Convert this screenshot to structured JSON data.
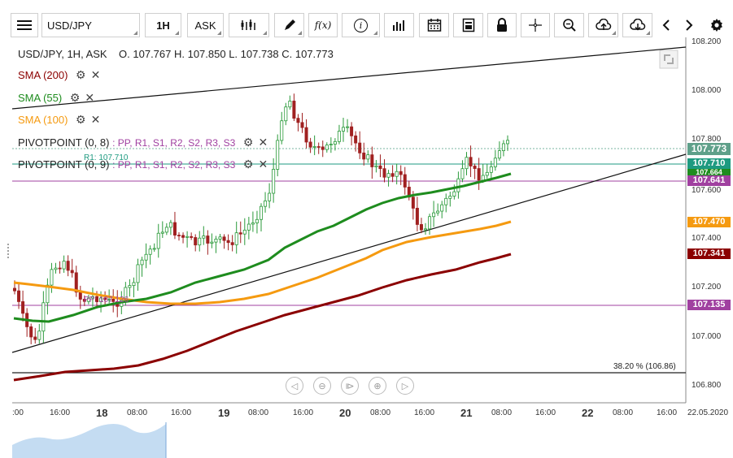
{
  "toolbar": {
    "symbol": "USD/JPY",
    "interval": "1H",
    "price_type": "ASK",
    "icons": [
      "menu-icon",
      "candles-icon",
      "pen-icon",
      "function-icon",
      "info-icon",
      "bars-icon",
      "calendar-icon",
      "report-icon",
      "lock-icon",
      "crosshair-icon",
      "zoom-icon",
      "upload-icon",
      "download-icon",
      "prev-icon",
      "next-icon",
      "settings-icon"
    ],
    "function_glyph": "f(x)",
    "info_glyph": "i"
  },
  "header": {
    "title": "USD/JPY, 1H, ASK",
    "ohlc": "O. 107.767 H. 107.850 L. 107.738 C. 107.773"
  },
  "indicators": [
    {
      "label": "SMA (200)",
      "color": "#8b0000"
    },
    {
      "label": "SMA (55)",
      "color": "#1e8c1e"
    },
    {
      "label": "SMA (100)",
      "color": "#f59a10"
    }
  ],
  "pivots": [
    {
      "label": "PIVOTPOINT (0, 8)",
      "levels": ": PP, R1, S1, R2, S2, R3, S3"
    },
    {
      "label": "PIVOTPOINT (0, 9)",
      "levels": ": PP, R1, S1, R2, S2, R3, S3"
    }
  ],
  "pivot_colors": [
    "#a040a0",
    "#1e8c1e",
    "#8b5a00",
    "#2040c0",
    "#8b3030",
    "#c02080",
    "#109090"
  ],
  "chart_labels": {
    "r1_inline": "R1: 107.710",
    "pp_inline": "PP: 107.126",
    "fib": "38.20 % (106.86)"
  },
  "y_axis": [
    "108.200",
    "108.000",
    "107.800",
    "107.600",
    "107.400",
    "107.200",
    "107.000",
    "106.800"
  ],
  "x_axis": [
    {
      "t": ":00",
      "big": false
    },
    {
      "t": "16:00",
      "big": false
    },
    {
      "t": "18",
      "big": true
    },
    {
      "t": "08:00",
      "big": false
    },
    {
      "t": "16:00",
      "big": false
    },
    {
      "t": "19",
      "big": true
    },
    {
      "t": "08:00",
      "big": false
    },
    {
      "t": "16:00",
      "big": false
    },
    {
      "t": "20",
      "big": true
    },
    {
      "t": "08:00",
      "big": false
    },
    {
      "t": "16:00",
      "big": false
    },
    {
      "t": "21",
      "big": true
    },
    {
      "t": "08:00",
      "big": false
    },
    {
      "t": "16:00",
      "big": false
    },
    {
      "t": "22",
      "big": true
    },
    {
      "t": "08:00",
      "big": false
    },
    {
      "t": "16:00",
      "big": false
    },
    {
      "t": "22.05.2020",
      "big": false
    }
  ],
  "badges": [
    {
      "text": "107.773",
      "color": "#5fa08a"
    },
    {
      "text": "107.710",
      "color": "#1e9a80"
    },
    {
      "text": "107.664",
      "color": "#1e8c1e"
    },
    {
      "text": "107.641",
      "color": "#a040a0"
    },
    {
      "text": "107.470",
      "color": "#f59a10"
    },
    {
      "text": "107.341",
      "color": "#8b0000"
    },
    {
      "text": "107.135",
      "color": "#a040a0"
    }
  ],
  "colors": {
    "up": "#2a9a3a",
    "down": "#a02020"
  }
}
